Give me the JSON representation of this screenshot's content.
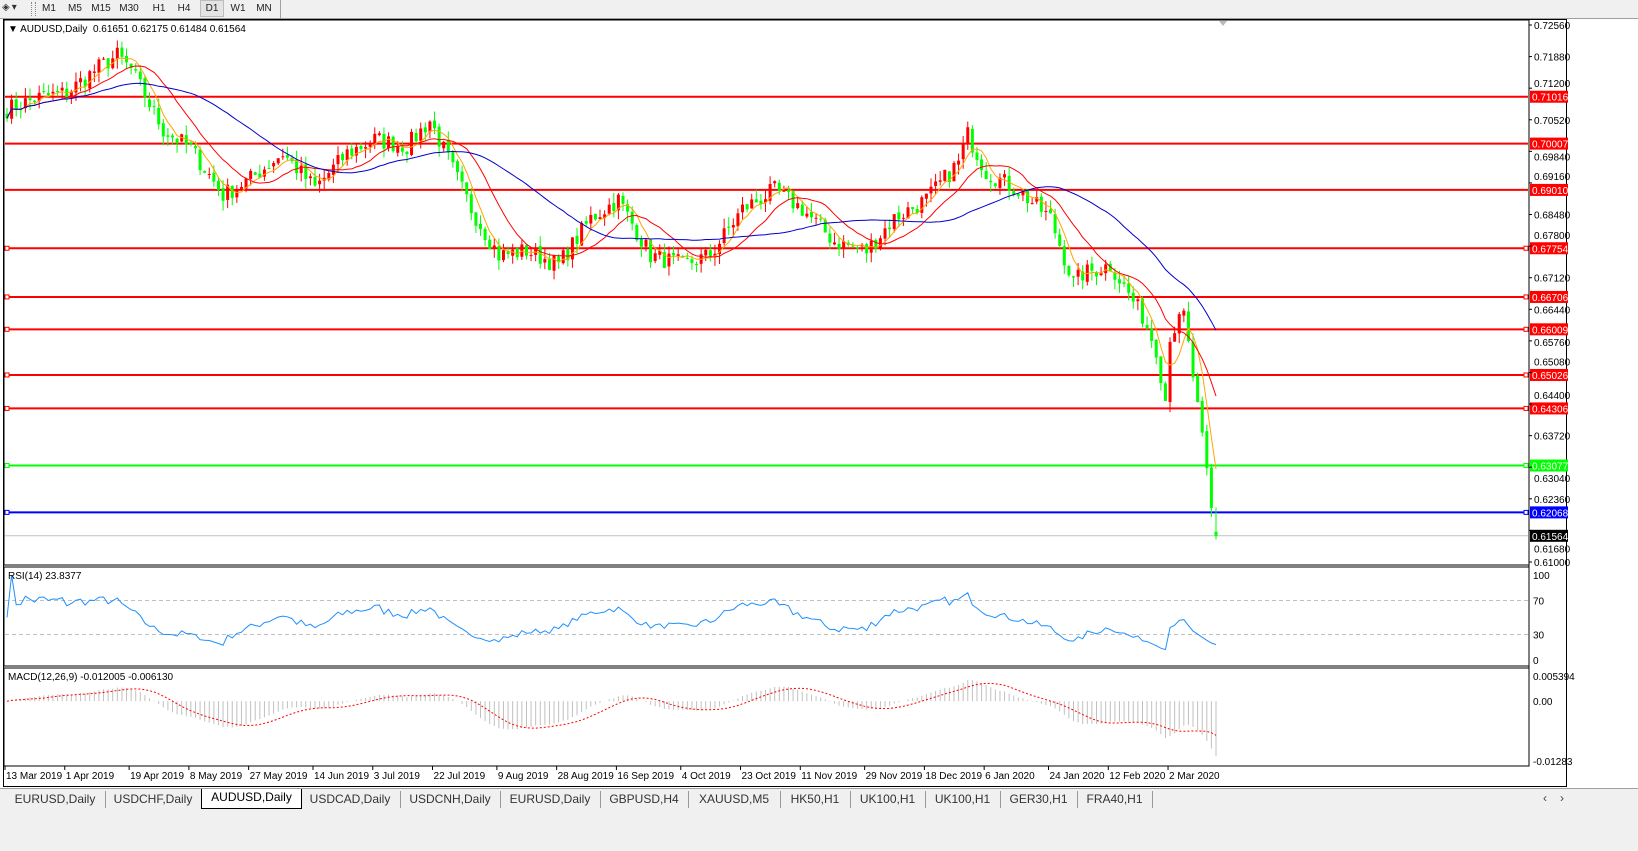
{
  "toolbar": {
    "draw_tools_icon": "shapes-icon",
    "timeframes": [
      "M1",
      "M5",
      "M15",
      "M30",
      "H1",
      "H4",
      "D1",
      "W1",
      "MN"
    ],
    "active_timeframe": "D1"
  },
  "header": {
    "symbol": "AUDUSD,Daily",
    "ohlc": "0.61651 0.62175 0.61484 0.61564",
    "open": 0.61651,
    "high": 0.62175,
    "low": 0.61484,
    "close": 0.61564
  },
  "colors": {
    "bull_candle": "#ff0000",
    "bear_candle": "#00ff00",
    "ma_fast": "#ffa500",
    "ma_mid": "#ff0000",
    "ma_slow": "#0000cc",
    "rsi": "#1e90ff",
    "macd_hist": "#c0c0c0",
    "macd_signal": "#ff0000",
    "bid_line": "#c0c0c0"
  },
  "price_axis": {
    "ticks": [
      "0.72560",
      "0.71880",
      "0.71200",
      "0.70520",
      "0.69840",
      "0.69160",
      "0.68480",
      "0.67800",
      "0.67120",
      "0.66440",
      "0.65760",
      "0.65080",
      "0.64400",
      "0.63720",
      "0.63040",
      "0.62360",
      "0.61680",
      "0.61000"
    ],
    "min": 0.61,
    "max": 0.7256
  },
  "levels": [
    {
      "label": "0.71016",
      "value": 0.71016,
      "color": "#ff0000",
      "marker": false
    },
    {
      "label": "0.70007",
      "value": 0.70007,
      "color": "#ff0000",
      "marker": false
    },
    {
      "label": "0.69010",
      "value": 0.6901,
      "color": "#ff0000",
      "marker": false
    },
    {
      "label": "0.67754",
      "value": 0.67754,
      "color": "#ff0000",
      "marker": true
    },
    {
      "label": "0.66706",
      "value": 0.66706,
      "color": "#ff0000",
      "marker": true
    },
    {
      "label": "0.66009",
      "value": 0.66009,
      "color": "#ff0000",
      "marker": true
    },
    {
      "label": "0.65026",
      "value": 0.65026,
      "color": "#ff0000",
      "marker": true
    },
    {
      "label": "0.64306",
      "value": 0.64306,
      "color": "#ff0000",
      "marker": true
    },
    {
      "label": "0.63077",
      "value": 0.63077,
      "color": "#00ff00",
      "marker": true
    },
    {
      "label": "0.62068",
      "value": 0.62068,
      "color": "#0000ff",
      "marker": true
    }
  ],
  "bid": {
    "label": "0.61564",
    "value": 0.61564,
    "color": "#000000"
  },
  "rsi": {
    "label": "RSI(14) 23.8377",
    "ticks": [
      "100",
      "70",
      "30",
      "0"
    ]
  },
  "macd": {
    "label": "MACD(12,26,9) -0.012005 -0.006130",
    "ticks": [
      "0.005394",
      "0.00",
      "-0.01283"
    ],
    "max": 0.005394,
    "min": -0.01283
  },
  "date_axis": [
    {
      "label": "13 Mar 2019",
      "date": "2019-03-13"
    },
    {
      "label": "1 Apr 2019",
      "date": "2019-04-01"
    },
    {
      "label": "19 Apr 2019",
      "date": "2019-04-19"
    },
    {
      "label": "8 May 2019",
      "date": "2019-05-08"
    },
    {
      "label": "27 May 2019",
      "date": "2019-05-27"
    },
    {
      "label": "14 Jun 2019",
      "date": "2019-06-14"
    },
    {
      "label": "3 Jul 2019",
      "date": "2019-07-03"
    },
    {
      "label": "22 Jul 2019",
      "date": "2019-07-22"
    },
    {
      "label": "9 Aug 2019",
      "date": "2019-08-09"
    },
    {
      "label": "28 Aug 2019",
      "date": "2019-08-28"
    },
    {
      "label": "16 Sep 2019",
      "date": "2019-09-16"
    },
    {
      "label": "4 Oct 2019",
      "date": "2019-10-04"
    },
    {
      "label": "23 Oct 2019",
      "date": "2019-10-23"
    },
    {
      "label": "11 Nov 2019",
      "date": "2019-11-11"
    },
    {
      "label": "29 Nov 2019",
      "date": "2019-11-29"
    },
    {
      "label": "18 Dec 2019",
      "date": "2019-12-18"
    },
    {
      "label": "6 Jan 2020",
      "date": "2020-01-06"
    },
    {
      "label": "24 Jan 2020",
      "date": "2020-01-24"
    },
    {
      "label": "12 Feb 2020",
      "date": "2020-02-12"
    },
    {
      "label": "2 Mar 2020",
      "date": "2020-03-02"
    }
  ],
  "chart_data": {
    "type": "candlestick",
    "symbol": "AUDUSD",
    "timeframe": "Daily",
    "ylim": [
      0.61,
      0.7256
    ],
    "close_path": [
      [
        "2019-03-13",
        0.7075
      ],
      [
        "2019-03-22",
        0.71
      ],
      [
        "2019-04-01",
        0.711
      ],
      [
        "2019-04-10",
        0.7165
      ],
      [
        "2019-04-16",
        0.719
      ],
      [
        "2019-04-19",
        0.716
      ],
      [
        "2019-04-30",
        0.703
      ],
      [
        "2019-05-08",
        0.699
      ],
      [
        "2019-05-17",
        0.689
      ],
      [
        "2019-05-27",
        0.6925
      ],
      [
        "2019-06-05",
        0.698
      ],
      [
        "2019-06-14",
        0.6905
      ],
      [
        "2019-06-25",
        0.698
      ],
      [
        "2019-07-03",
        0.701
      ],
      [
        "2019-07-12",
        0.6995
      ],
      [
        "2019-07-19",
        0.705
      ],
      [
        "2019-07-22",
        0.703
      ],
      [
        "2019-08-01",
        0.686
      ],
      [
        "2019-08-09",
        0.676
      ],
      [
        "2019-08-19",
        0.677
      ],
      [
        "2019-08-28",
        0.674
      ],
      [
        "2019-09-06",
        0.684
      ],
      [
        "2019-09-16",
        0.688
      ],
      [
        "2019-09-25",
        0.676
      ],
      [
        "2019-10-04",
        0.674
      ],
      [
        "2019-10-14",
        0.676
      ],
      [
        "2019-10-23",
        0.686
      ],
      [
        "2019-11-01",
        0.69
      ],
      [
        "2019-11-11",
        0.686
      ],
      [
        "2019-11-20",
        0.679
      ],
      [
        "2019-11-29",
        0.677
      ],
      [
        "2019-12-09",
        0.684
      ],
      [
        "2019-12-18",
        0.688
      ],
      [
        "2019-12-27",
        0.696
      ],
      [
        "2019-12-31",
        0.702
      ],
      [
        "2020-01-06",
        0.694
      ],
      [
        "2020-01-15",
        0.69
      ],
      [
        "2020-01-24",
        0.684
      ],
      [
        "2020-01-31",
        0.67
      ],
      [
        "2020-02-04",
        0.672
      ],
      [
        "2020-02-12",
        0.674
      ],
      [
        "2020-02-21",
        0.663
      ],
      [
        "2020-02-26",
        0.656
      ],
      [
        "2020-02-28",
        0.645
      ],
      [
        "2020-03-02",
        0.659
      ],
      [
        "2020-03-05",
        0.663
      ],
      [
        "2020-03-09",
        0.65
      ],
      [
        "2020-03-12",
        0.629
      ],
      [
        "2020-03-13",
        0.621
      ],
      [
        "2020-03-16",
        0.61564
      ]
    ]
  },
  "tabs": [
    {
      "label": "EURUSD,Daily"
    },
    {
      "label": "USDCHF,Daily"
    },
    {
      "label": "AUDUSD,Daily",
      "active": true
    },
    {
      "label": "USDCAD,Daily"
    },
    {
      "label": "USDCNH,Daily"
    },
    {
      "label": "EURUSD,Daily"
    },
    {
      "label": "GBPUSD,H4"
    },
    {
      "label": "XAUUSD,M5"
    },
    {
      "label": "HK50,H1"
    },
    {
      "label": "UK100,H1"
    },
    {
      "label": "UK100,H1"
    },
    {
      "label": "GER30,H1"
    },
    {
      "label": "FRA40,H1"
    }
  ],
  "tab_scroll": {
    "left": "‹",
    "right": "›"
  }
}
